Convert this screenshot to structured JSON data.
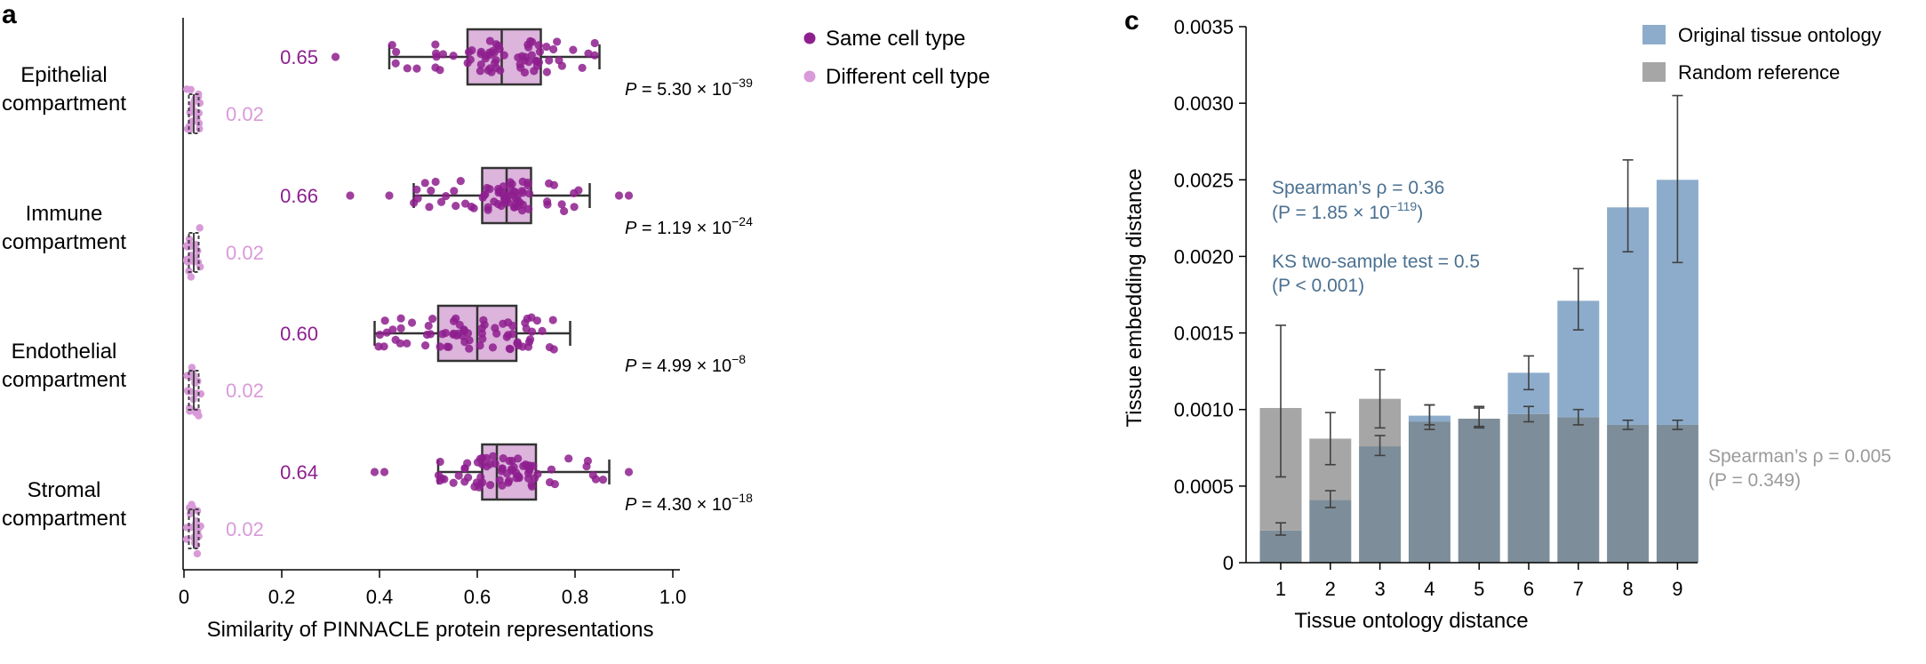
{
  "chart_data": [
    {
      "panel": "a",
      "type": "boxplot",
      "xlabel": "Similarity of PINNACLE protein representations",
      "xlim": [
        0,
        1.0
      ],
      "xticks": [
        0,
        0.2,
        0.4,
        0.6,
        0.8,
        1.0
      ],
      "xtick_labels": [
        "0",
        "0.2",
        "0.4",
        "0.6",
        "0.8",
        "1.0"
      ],
      "legend": {
        "position": "top-right",
        "entries": [
          {
            "label": "Same cell type",
            "color": "#8e1f8e"
          },
          {
            "label": "Different cell type",
            "color": "#d99ad9"
          }
        ]
      },
      "groups": [
        {
          "label_line1": "Epithelial",
          "label_line2": "compartment",
          "same": {
            "median": 0.65,
            "q1": 0.58,
            "q3": 0.73,
            "whisker_low": 0.42,
            "whisker_high": 0.85,
            "outliers": [
              0.31
            ],
            "mean_label": "0.65"
          },
          "different": {
            "median": 0.02,
            "q1": 0.01,
            "q3": 0.03,
            "whisker_low": 0.005,
            "whisker_high": 0.035,
            "mean_label": "0.02"
          },
          "p_value": {
            "prefix": "P",
            "text": " = 5.30 × 10",
            "exp": "−39"
          }
        },
        {
          "label_line1": "Immune",
          "label_line2": "compartment",
          "same": {
            "median": 0.66,
            "q1": 0.61,
            "q3": 0.71,
            "whisker_low": 0.47,
            "whisker_high": 0.83,
            "outliers": [
              0.34,
              0.42,
              0.89,
              0.91
            ],
            "mean_label": "0.66"
          },
          "different": {
            "median": 0.02,
            "q1": 0.01,
            "q3": 0.03,
            "whisker_low": 0.005,
            "whisker_high": 0.035,
            "mean_label": "0.02"
          },
          "p_value": {
            "prefix": "P",
            "text": " = 1.19 × 10",
            "exp": "−24"
          }
        },
        {
          "label_line1": "Endothelial",
          "label_line2": "compartment",
          "same": {
            "median": 0.6,
            "q1": 0.52,
            "q3": 0.68,
            "whisker_low": 0.39,
            "whisker_high": 0.79,
            "outliers": [],
            "mean_label": "0.60"
          },
          "different": {
            "median": 0.02,
            "q1": 0.01,
            "q3": 0.03,
            "whisker_low": 0.005,
            "whisker_high": 0.035,
            "mean_label": "0.02"
          },
          "p_value": {
            "prefix": "P",
            "text": " = 4.99 × 10",
            "exp": "−8"
          }
        },
        {
          "label_line1": "Stromal",
          "label_line2": "compartment",
          "same": {
            "median": 0.64,
            "q1": 0.61,
            "q3": 0.72,
            "whisker_low": 0.52,
            "whisker_high": 0.87,
            "outliers": [
              0.39,
              0.41,
              0.91
            ],
            "mean_label": "0.64"
          },
          "different": {
            "median": 0.02,
            "q1": 0.01,
            "q3": 0.03,
            "whisker_low": 0.005,
            "whisker_high": 0.035,
            "mean_label": "0.02"
          },
          "p_value": {
            "prefix": "P",
            "text": " = 4.30 × 10",
            "exp": "−18"
          }
        }
      ]
    },
    {
      "panel": "c",
      "type": "bar",
      "xlabel": "Tissue ontology distance",
      "ylabel": "Tissue embedding distance",
      "ylim": [
        0,
        0.0035
      ],
      "yticks": [
        0,
        0.0005,
        0.001,
        0.0015,
        0.002,
        0.0025,
        0.003,
        0.0035
      ],
      "ytick_labels": [
        "0",
        "0.0005",
        "0.0010",
        "0.0015",
        "0.0020",
        "0.0025",
        "0.0030",
        "0.0035"
      ],
      "categories": [
        "1",
        "2",
        "3",
        "4",
        "5",
        "6",
        "7",
        "8",
        "9"
      ],
      "legend": {
        "position": "top-right"
      },
      "series": [
        {
          "name": "Original tissue ontology",
          "color": "#8daccb",
          "values": [
            0.00021,
            0.00041,
            0.00076,
            0.00096,
            0.00094,
            0.00124,
            0.00171,
            0.00232,
            0.0025
          ],
          "err_low": [
            0.00018,
            0.00036,
            0.0007,
            0.0009,
            0.00088,
            0.00113,
            0.00152,
            0.00203,
            0.00196
          ],
          "err_high": [
            0.00026,
            0.00047,
            0.00083,
            0.00103,
            0.00101,
            0.00135,
            0.00192,
            0.00263,
            0.00305
          ]
        },
        {
          "name": "Random reference",
          "color": "#a6a6a6",
          "values": [
            0.00101,
            0.00081,
            0.00107,
            0.00092,
            0.00094,
            0.00097,
            0.00095,
            0.0009,
            0.0009
          ],
          "err_low": [
            0.00056,
            0.00064,
            0.00088,
            0.00087,
            0.00089,
            0.00092,
            0.0009,
            0.00087,
            0.00087
          ],
          "err_high": [
            0.00155,
            0.00098,
            0.00126,
            0.00103,
            0.00102,
            0.00102,
            0.001,
            0.00093,
            0.00093
          ]
        }
      ],
      "annotations": {
        "orig_corr": {
          "line1": "Spearman’s ρ = 0.36",
          "pre": "(P = 1.85 × 10",
          "exp": "−119",
          "post": ")"
        },
        "ks_test": {
          "line1": "KS two-sample test = 0.5",
          "line2": "(P < 0.001)"
        },
        "random_corr": {
          "line1": "Spearman’s ρ = 0.005",
          "line2": "(P = 0.349)"
        }
      }
    }
  ],
  "panel_labels": {
    "a": "a",
    "c": "c"
  },
  "colors": {
    "same": "#8e1f8e",
    "same_box": "#dcb4dc",
    "different": "#d99ad9",
    "p_text": "#000000",
    "orig_annot": "#4a7090",
    "random_annot": "#9a9a9a",
    "overlap": "#7d8d99"
  }
}
